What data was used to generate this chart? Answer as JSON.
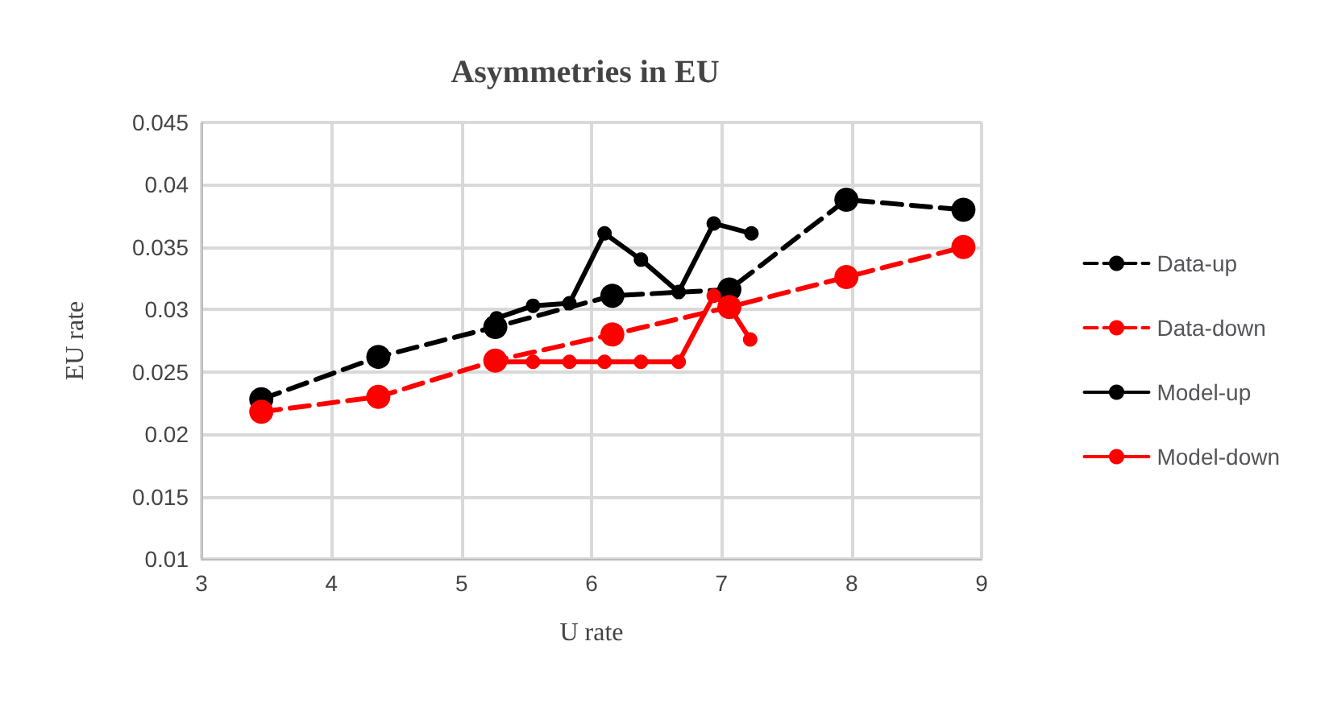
{
  "chart_data": {
    "type": "line",
    "title": "Asymmetries in EU",
    "xlabel": "U rate",
    "ylabel": "EU rate",
    "xlim": [
      3,
      9
    ],
    "xticks": [
      3,
      4,
      5,
      6,
      7,
      8,
      9
    ],
    "ylim": [
      0.01,
      0.045
    ],
    "yticks": [
      0.01,
      0.015,
      0.02,
      0.025,
      0.03,
      0.035,
      0.04,
      0.045
    ],
    "grid": true,
    "legend": "right",
    "marker": "circle",
    "series": [
      {
        "name": "Data-up",
        "color": "#000000",
        "line_style": "dashed",
        "x": [
          3.46,
          4.36,
          5.26,
          6.16,
          7.06,
          7.96,
          8.86
        ],
        "values": [
          0.0228,
          0.0262,
          0.0286,
          0.0311,
          0.0316,
          0.0388,
          0.038
        ]
      },
      {
        "name": "Data-down",
        "color": "#ff0000",
        "line_style": "dashed",
        "x": [
          3.46,
          4.36,
          5.26,
          6.16,
          7.06,
          7.96,
          8.86
        ],
        "values": [
          0.0218,
          0.023,
          0.0259,
          0.028,
          0.0302,
          0.0326,
          0.035
        ]
      },
      {
        "name": "Model-up",
        "color": "#000000",
        "line_style": "solid",
        "x": [
          5.27,
          5.55,
          5.83,
          6.1,
          6.38,
          6.67,
          6.94,
          7.23
        ],
        "values": [
          0.0293,
          0.0303,
          0.0305,
          0.0361,
          0.034,
          0.0314,
          0.0369,
          0.0361
        ]
      },
      {
        "name": "Model-down",
        "color": "#ff0000",
        "line_style": "solid",
        "x": [
          5.27,
          5.55,
          5.83,
          6.1,
          6.38,
          6.67,
          6.94,
          7.06,
          7.22
        ],
        "values": [
          0.0258,
          0.0258,
          0.0258,
          0.0258,
          0.0258,
          0.0258,
          0.0311,
          0.0302,
          0.0276
        ]
      }
    ]
  }
}
